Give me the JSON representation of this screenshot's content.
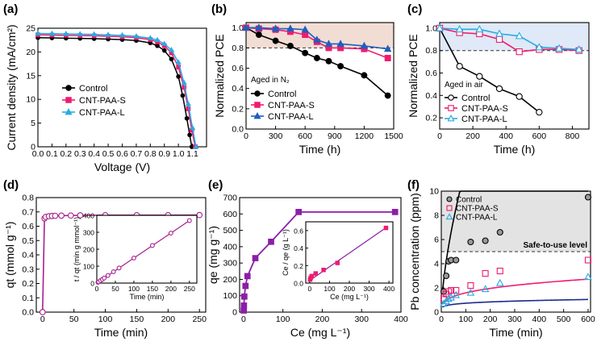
{
  "figure_title": "",
  "chart_data": [
    {
      "id": "a",
      "panel_label": "(a)",
      "type": "line",
      "xlabel": "Voltage (V)",
      "ylabel": "Current density (mA/cm²)",
      "xlim": [
        0,
        1.2
      ],
      "ylim": [
        0,
        25
      ],
      "xticks": [
        0.0,
        0.1,
        0.2,
        0.3,
        0.4,
        0.5,
        0.6,
        0.7,
        0.8,
        0.9,
        1.0,
        1.1
      ],
      "xtick_labels": [
        "0.0",
        "0.1",
        "0.2",
        "0.3",
        "0.4",
        "0.5",
        "0.6",
        "0.7",
        "0.8",
        "0.9",
        "1.0",
        "1.1"
      ],
      "yticks": [
        0,
        5,
        10,
        15,
        20,
        25
      ],
      "ytick_labels": [
        "0",
        "5",
        "10",
        "15",
        "20",
        "25"
      ],
      "legend": "center-left",
      "series": [
        {
          "name": "Control",
          "color": "#000000",
          "marker": "circle",
          "x": [
            0,
            0.1,
            0.2,
            0.3,
            0.4,
            0.5,
            0.6,
            0.7,
            0.8,
            0.85,
            0.9,
            0.95,
            1.0,
            1.03,
            1.06,
            1.08,
            1.095
          ],
          "y": [
            23.0,
            22.95,
            22.9,
            22.85,
            22.8,
            22.7,
            22.6,
            22.4,
            21.9,
            21.3,
            20.3,
            18.5,
            14.8,
            10.8,
            6.0,
            2.5,
            0
          ]
        },
        {
          "name": "CNT-PAA-S",
          "color": "#ee1c6e",
          "marker": "square",
          "x": [
            0,
            0.1,
            0.2,
            0.3,
            0.4,
            0.5,
            0.6,
            0.7,
            0.8,
            0.85,
            0.9,
            0.95,
            1.0,
            1.04,
            1.07,
            1.095,
            1.12
          ],
          "y": [
            23.6,
            23.55,
            23.5,
            23.45,
            23.4,
            23.3,
            23.2,
            23.0,
            22.6,
            22.1,
            21.3,
            19.8,
            16.8,
            12.5,
            8.0,
            3.5,
            0
          ]
        },
        {
          "name": "CNT-PAA-L",
          "color": "#29abe2",
          "marker": "triangle",
          "x": [
            0,
            0.1,
            0.2,
            0.3,
            0.4,
            0.5,
            0.6,
            0.7,
            0.8,
            0.85,
            0.9,
            0.95,
            1.0,
            1.04,
            1.07,
            1.1,
            1.125
          ],
          "y": [
            23.9,
            23.85,
            23.8,
            23.75,
            23.7,
            23.6,
            23.5,
            23.3,
            22.9,
            22.5,
            21.7,
            20.4,
            17.8,
            13.5,
            9.0,
            4.0,
            0
          ]
        }
      ]
    },
    {
      "id": "b",
      "panel_label": "(b)",
      "type": "line",
      "xlabel": "Time (h)",
      "ylabel": "Normalized PCE",
      "xlim": [
        0,
        1500
      ],
      "ylim": [
        0,
        1.05
      ],
      "xticks": [
        0,
        300,
        600,
        900,
        1200,
        1500
      ],
      "xtick_labels": [
        "0",
        "300",
        "600",
        "900",
        "1200",
        "1500"
      ],
      "yticks": [
        0,
        0.2,
        0.4,
        0.6,
        0.8,
        1.0
      ],
      "ytick_labels": [
        "0.0",
        "0.2",
        "0.4",
        "0.6",
        "0.8",
        "1.0"
      ],
      "reference_line": 0.8,
      "shaded_band": [
        0.8,
        1.05
      ],
      "shade_color": "#f2ddd4",
      "annotation": "Aged in N₂",
      "legend": "bottom-left",
      "series": [
        {
          "name": "Control",
          "color": "#000000",
          "marker": "circle",
          "x": [
            0,
            130,
            300,
            450,
            600,
            720,
            840,
            960,
            1200,
            1440
          ],
          "y": [
            1.0,
            0.93,
            0.87,
            0.82,
            0.75,
            0.7,
            0.67,
            0.62,
            0.53,
            0.33
          ]
        },
        {
          "name": "CNT-PAA-S",
          "color": "#ee1c6e",
          "marker": "square",
          "x": [
            0,
            130,
            300,
            450,
            600,
            720,
            840,
            960,
            1200,
            1440
          ],
          "y": [
            1.0,
            0.99,
            0.98,
            0.96,
            0.93,
            0.86,
            0.8,
            0.8,
            0.79,
            0.7
          ]
        },
        {
          "name": "CNT-PAA-L",
          "color": "#1f5fbf",
          "marker": "triangle",
          "x": [
            0,
            130,
            300,
            450,
            600,
            720,
            840,
            960,
            1200,
            1440
          ],
          "y": [
            1.0,
            1.0,
            0.99,
            0.99,
            0.98,
            0.88,
            0.84,
            0.84,
            0.82,
            0.79
          ]
        }
      ]
    },
    {
      "id": "c",
      "panel_label": "(c)",
      "type": "line",
      "xlabel": "Time (h)",
      "ylabel": "Normalized PCE",
      "xlim": [
        0,
        900
      ],
      "ylim": [
        0.1,
        1.05
      ],
      "xticks": [
        0,
        200,
        400,
        600,
        800
      ],
      "xtick_labels": [
        "0",
        "200",
        "400",
        "600",
        "800"
      ],
      "yticks": [
        0.2,
        0.4,
        0.6,
        0.8,
        1.0
      ],
      "ytick_labels": [
        "0.2",
        "0.4",
        "0.6",
        "0.8",
        "1.0"
      ],
      "reference_line": 0.8,
      "shaded_band": [
        0.8,
        1.05
      ],
      "shade_color": "#dfe9f7",
      "annotation": "Aged in air",
      "legend": "bottom-left",
      "series": [
        {
          "name": "Control",
          "color": "#000000",
          "marker": "open-circle",
          "x": [
            0,
            120,
            240,
            360,
            480,
            600
          ],
          "y": [
            1.0,
            0.66,
            0.57,
            0.46,
            0.39,
            0.25
          ]
        },
        {
          "name": "CNT-PAA-S",
          "color": "#ee1c6e",
          "marker": "open-square",
          "x": [
            0,
            120,
            240,
            360,
            480,
            600,
            720,
            840
          ],
          "y": [
            1.0,
            0.96,
            0.95,
            0.9,
            0.79,
            0.81,
            0.81,
            0.8
          ]
        },
        {
          "name": "CNT-PAA-L",
          "color": "#29abe2",
          "marker": "open-triangle",
          "x": [
            0,
            120,
            240,
            360,
            480,
            600,
            720,
            840
          ],
          "y": [
            1.0,
            0.99,
            0.99,
            0.95,
            0.93,
            0.83,
            0.82,
            0.81
          ]
        }
      ]
    },
    {
      "id": "d",
      "panel_label": "(d)",
      "type": "line",
      "xlabel": "Time (min)",
      "ylabel": "qt (mmol g⁻¹)",
      "xlim": [
        -10,
        260
      ],
      "ylim": [
        0,
        0.8
      ],
      "xticks": [
        0,
        50,
        100,
        150,
        200,
        250
      ],
      "xtick_labels": [
        "0",
        "50",
        "100",
        "150",
        "200",
        "250"
      ],
      "yticks": [
        0,
        0.1,
        0.2,
        0.3,
        0.4,
        0.5,
        0.6,
        0.7,
        0.8
      ],
      "ytick_labels": [
        "0.0",
        "0.1",
        "0.2",
        "0.3",
        "0.4",
        "0.5",
        "0.6",
        "0.7",
        "0.8"
      ],
      "series": [
        {
          "name": "qt",
          "color": "#a8208c",
          "marker": "open-circle",
          "x": [
            0,
            3,
            5,
            10,
            15,
            20,
            30,
            45,
            60,
            100,
            150,
            200,
            250
          ],
          "y": [
            0,
            0.655,
            0.665,
            0.67,
            0.672,
            0.673,
            0.674,
            0.675,
            0.676,
            0.677,
            0.677,
            0.677,
            0.678
          ]
        }
      ],
      "inset": {
        "type": "scatter",
        "xlabel": "Time (min)",
        "ylabel": "t / qt (min g mmol⁻¹)",
        "xlim": [
          0,
          270
        ],
        "ylim": [
          0,
          400
        ],
        "xticks": [
          0,
          50,
          100,
          150,
          200,
          250
        ],
        "xtick_labels": [
          "0",
          "50",
          "100",
          "150",
          "200",
          "250"
        ],
        "yticks": [
          0,
          100,
          200,
          300,
          400
        ],
        "ytick_labels": [
          "0",
          "100",
          "200",
          "300",
          "400"
        ],
        "x": [
          3,
          5,
          10,
          15,
          20,
          30,
          45,
          60,
          100,
          150,
          200,
          250
        ],
        "y": [
          4.6,
          7.5,
          15,
          22,
          30,
          45,
          67,
          89,
          148,
          222,
          295,
          369
        ],
        "fit": [
          [
            0,
            0
          ],
          [
            250,
            369
          ]
        ]
      }
    },
    {
      "id": "e",
      "panel_label": "(e)",
      "type": "line",
      "xlabel": "Ce (mg L⁻¹)",
      "ylabel": "qe (mg g⁻¹)",
      "xlim": [
        -10,
        400
      ],
      "ylim": [
        0,
        700
      ],
      "xticks": [
        0,
        100,
        200,
        300,
        400
      ],
      "xtick_labels": [
        "0",
        "100",
        "200",
        "300",
        "400"
      ],
      "yticks": [
        0,
        100,
        200,
        300,
        400,
        500,
        600,
        700
      ],
      "ytick_labels": [
        "0",
        "100",
        "200",
        "300",
        "400",
        "500",
        "600",
        "700"
      ],
      "series": [
        {
          "name": "qe",
          "color": "#8b1ea8",
          "marker": "square",
          "x": [
            0.5,
            1,
            2,
            5,
            10,
            30,
            70,
            140,
            385
          ],
          "y": [
            10,
            40,
            95,
            160,
            220,
            330,
            430,
            612,
            612
          ]
        }
      ],
      "inset": {
        "type": "scatter",
        "xlabel": "Ce (mg L⁻¹)",
        "ylabel": "Ce / qe (g L⁻¹)",
        "xlim": [
          -20,
          420
        ],
        "ylim": [
          0,
          0.7
        ],
        "xticks": [
          0,
          100,
          200,
          300,
          400
        ],
        "xtick_labels": [
          "0",
          "100",
          "200",
          "300",
          "400"
        ],
        "yticks": [
          0,
          0.2,
          0.4,
          0.6
        ],
        "ytick_labels": [
          "0.0",
          "0.2",
          "0.4",
          "0.6"
        ],
        "x": [
          2,
          5,
          10,
          30,
          70,
          140,
          385
        ],
        "y": [
          0.04,
          0.06,
          0.08,
          0.11,
          0.15,
          0.23,
          0.63
        ],
        "fit": [
          [
            0,
            0.03
          ],
          [
            390,
            0.64
          ]
        ]
      }
    },
    {
      "id": "f",
      "panel_label": "(f)",
      "type": "scatter",
      "xlabel": "Time (min)",
      "ylabel": "Pb concentration (ppm)",
      "xlim": [
        0,
        610
      ],
      "ylim": [
        0,
        10
      ],
      "xticks": [
        0,
        100,
        200,
        300,
        400,
        500,
        600
      ],
      "xtick_labels": [
        "0",
        "100",
        "200",
        "300",
        "400",
        "500",
        "600"
      ],
      "yticks": [
        0,
        2,
        4,
        6,
        8,
        10
      ],
      "ytick_labels": [
        "0",
        "2",
        "4",
        "6",
        "8",
        "10"
      ],
      "reference_line": 5,
      "shaded_band": [
        5,
        10
      ],
      "shade_color": "#e3e3e3",
      "annotation": "Safe-to-use level",
      "legend": "top-left",
      "series": [
        {
          "name": "Control",
          "color": "#000000",
          "fill": "#999999",
          "marker": "circle",
          "x": [
            10,
            20,
            30,
            40,
            60,
            120,
            180,
            240,
            600
          ],
          "y": [
            1.7,
            3.0,
            4.2,
            4.3,
            4.3,
            5.8,
            5.9,
            6.6,
            9.5
          ],
          "fit_color": "#000000",
          "fit_a": 0.6,
          "fit_b": 1.3
        },
        {
          "name": "CNT-PAA-S",
          "color": "#ee1c6e",
          "fill": "none",
          "marker": "open-square",
          "x": [
            10,
            20,
            30,
            40,
            60,
            120,
            180,
            240,
            600
          ],
          "y": [
            1.1,
            1.5,
            1.7,
            1.8,
            1.8,
            2.2,
            3.2,
            3.4,
            4.3
          ],
          "fit_color": "#ee1c6e",
          "fit_a": 0.4,
          "fit_b": 0.6
        },
        {
          "name": "CNT-PAA-L",
          "color": "#29abe2",
          "fill": "none",
          "marker": "open-triangle",
          "x": [
            10,
            20,
            30,
            40,
            60,
            120,
            180,
            240,
            600
          ],
          "y": [
            0.7,
            0.9,
            1.1,
            1.2,
            1.4,
            1.6,
            1.9,
            2.4,
            2.9
          ],
          "fit_color": "#1a2a8c",
          "fit_a": 0.3,
          "fit_b": 0.39
        }
      ]
    }
  ]
}
